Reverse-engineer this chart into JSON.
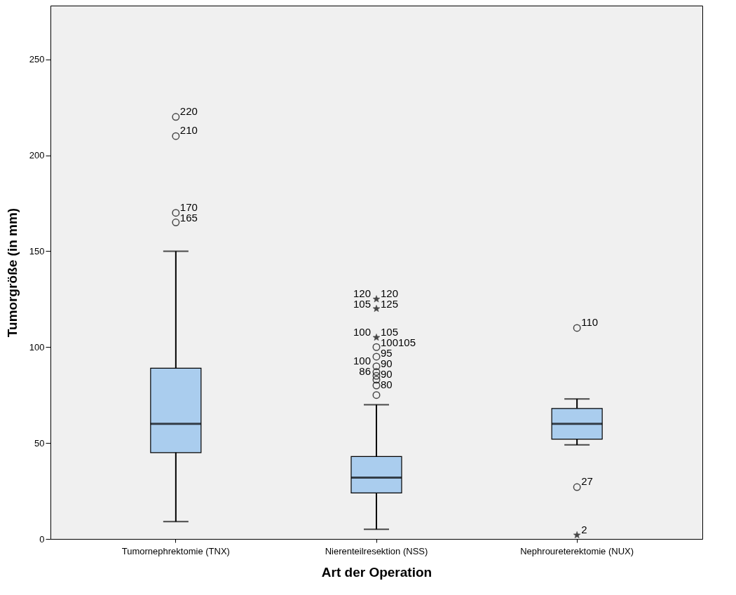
{
  "chart_data": {
    "type": "box",
    "xlabel": "Art der Operation",
    "ylabel": "Tumorgröße (in mm)",
    "categories": [
      "Tumornephrektomie (TNX)",
      "Nierenteilresektion (NSS)",
      "Nephroureterektomie (NUX)"
    ],
    "ylim": [
      0,
      278
    ],
    "yticks": [
      0,
      50,
      100,
      150,
      200,
      250
    ],
    "series": [
      {
        "type": "box",
        "color": "#aacdee",
        "boxes": [
          {
            "low": 9,
            "q1": 45,
            "median": 60,
            "q3": 89,
            "high": 150
          },
          {
            "low": 5,
            "q1": 24,
            "median": 32,
            "q3": 43,
            "high": 70
          },
          {
            "low": 49,
            "q1": 52,
            "median": 60,
            "q3": 68,
            "high": 73
          }
        ]
      },
      {
        "type": "scatter",
        "marker": "circle",
        "color": "#000000",
        "x": [
          "Tumornephrektomie (TNX)",
          "Tumornephrektomie (TNX)",
          "Tumornephrektomie (TNX)",
          "Tumornephrektomie (TNX)",
          "Nierenteilresektion (NSS)",
          "Nierenteilresektion (NSS)",
          "Nierenteilresektion (NSS)",
          "Nierenteilresektion (NSS)",
          "Nierenteilresektion (NSS)",
          "Nierenteilresektion (NSS)",
          "Nierenteilresektion (NSS)",
          "Nierenteilresektion (NSS)",
          "Nephroureterektomie (NUX)",
          "Nephroureterektomie (NUX)"
        ],
        "values": [
          220,
          210,
          170,
          165,
          100,
          95,
          90,
          87,
          85,
          83,
          80,
          75,
          110,
          27
        ]
      },
      {
        "type": "scatter",
        "marker": "star",
        "color": "#000000",
        "x": [
          "Nierenteilresektion (NSS)",
          "Nierenteilresektion (NSS)",
          "Nierenteilresektion (NSS)",
          "Nephroureterektomie (NUX)"
        ],
        "values": [
          125,
          120,
          105,
          2
        ]
      }
    ],
    "annotations": [
      {
        "text": "220",
        "x": "Tumornephrektomie (TNX)",
        "y": 220
      },
      {
        "text": "210",
        "x": "Tumornephrektomie (TNX)",
        "y": 210
      },
      {
        "text": "170",
        "x": "Tumornephrektomie (TNX)",
        "y": 170
      },
      {
        "text": "165",
        "x": "Tumornephrektomie (TNX)",
        "y": 165
      },
      {
        "text": "120",
        "x": "Nierenteilresektion (NSS)",
        "y": 125
      },
      {
        "text": "125",
        "x": "Nierenteilresektion (NSS)",
        "y": 120
      },
      {
        "text": "105",
        "x": "Nierenteilresektion (NSS)",
        "y": 105
      },
      {
        "text": "100105",
        "x": "Nierenteilresektion (NSS)",
        "y": 100
      },
      {
        "text": "95",
        "x": "Nierenteilresektion (NSS)",
        "y": 95
      },
      {
        "text": "90",
        "x": "Nierenteilresektion (NSS)",
        "y": 90
      },
      {
        "text": "90",
        "x": "Nierenteilresektion (NSS)",
        "y": 85
      },
      {
        "text": "80",
        "x": "Nierenteilresektion (NSS)",
        "y": 80
      },
      {
        "text": "120",
        "x": "Nierenteilresektion (NSS)",
        "y": 125
      },
      {
        "text": "105",
        "x": "Nierenteilresektion (NSS)",
        "y": 120
      },
      {
        "text": "100",
        "x": "Nierenteilresektion (NSS)",
        "y": 105
      },
      {
        "text": "100",
        "x": "Nierenteilresektion (NSS)",
        "y": 90
      },
      {
        "text": "86",
        "x": "Nierenteilresektion (NSS)",
        "y": 87
      },
      {
        "text": "110",
        "x": "Nephroureterektomie (NUX)",
        "y": 110
      },
      {
        "text": "27",
        "x": "Nephroureterektomie (NUX)",
        "y": 27
      },
      {
        "text": "2",
        "x": "Nephroureterektomie (NUX)",
        "y": 2
      }
    ]
  }
}
